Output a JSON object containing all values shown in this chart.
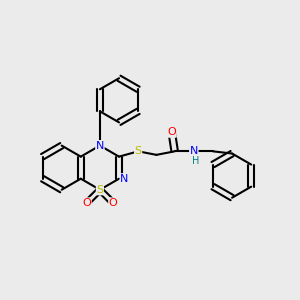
{
  "bg_color": "#ebebeb",
  "bond_color": "#000000",
  "atom_colors": {
    "N": "#0000ff",
    "S": "#bbbb00",
    "O": "#ff0000",
    "H": "#008080",
    "C": "#000000"
  },
  "figsize": [
    3.0,
    3.0
  ],
  "dpi": 100,
  "bond_lw": 1.5,
  "font_size": 8,
  "ring_r": 0.075,
  "xlim": [
    0.0,
    1.0
  ],
  "ylim": [
    0.05,
    0.95
  ]
}
